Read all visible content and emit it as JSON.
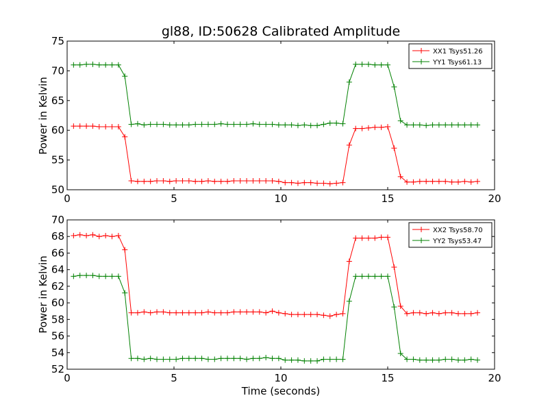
{
  "chart_data": [
    {
      "type": "line",
      "title": "gl88, ID:50628 Calibrated Amplitude",
      "xlabel": "",
      "ylabel": "Power in Kelvin",
      "xlim": [
        0,
        20
      ],
      "ylim": [
        50,
        75
      ],
      "xticks": [
        "0",
        "5",
        "10",
        "15",
        "20"
      ],
      "yticks": [
        "50",
        "55",
        "60",
        "65",
        "70",
        "75"
      ],
      "grid": false,
      "legend": "top-right",
      "x": [
        0.3,
        0.6,
        0.9,
        1.2,
        1.5,
        1.8,
        2.1,
        2.4,
        2.7,
        3.0,
        3.3,
        3.6,
        3.9,
        4.2,
        4.5,
        4.8,
        5.1,
        5.4,
        5.7,
        6.0,
        6.3,
        6.6,
        6.9,
        7.2,
        7.5,
        7.8,
        8.1,
        8.4,
        8.7,
        9.0,
        9.3,
        9.6,
        9.9,
        10.2,
        10.5,
        10.8,
        11.1,
        11.4,
        11.7,
        12.0,
        12.3,
        12.6,
        12.9,
        13.2,
        13.5,
        13.8,
        14.1,
        14.4,
        14.7,
        15.0,
        15.3,
        15.6,
        15.9,
        16.2,
        16.5,
        16.8,
        17.1,
        17.4,
        17.7,
        18.0,
        18.3,
        18.6,
        18.9,
        19.2
      ],
      "series": [
        {
          "name": "XX1 Tsys51.26",
          "color": "#ff0000",
          "values": [
            60.7,
            60.7,
            60.7,
            60.7,
            60.6,
            60.6,
            60.6,
            60.6,
            58.9,
            51.5,
            51.4,
            51.4,
            51.4,
            51.5,
            51.5,
            51.4,
            51.5,
            51.5,
            51.5,
            51.4,
            51.4,
            51.5,
            51.4,
            51.4,
            51.4,
            51.5,
            51.5,
            51.5,
            51.5,
            51.5,
            51.5,
            51.5,
            51.4,
            51.2,
            51.2,
            51.1,
            51.2,
            51.2,
            51.1,
            51.1,
            51.0,
            51.1,
            51.2,
            57.5,
            60.3,
            60.3,
            60.4,
            60.5,
            60.5,
            60.6,
            57.0,
            52.2,
            51.3,
            51.3,
            51.4,
            51.4,
            51.4,
            51.4,
            51.4,
            51.3,
            51.3,
            51.4,
            51.3,
            51.4
          ]
        },
        {
          "name": "YY1 Tsys61.13",
          "color": "#008000",
          "values": [
            71.0,
            71.0,
            71.1,
            71.1,
            71.0,
            71.0,
            71.0,
            71.0,
            69.1,
            61.0,
            61.1,
            60.9,
            61.0,
            61.0,
            61.0,
            60.9,
            60.9,
            60.9,
            60.9,
            61.0,
            61.0,
            61.0,
            61.0,
            61.1,
            61.0,
            61.0,
            61.0,
            61.0,
            61.1,
            61.0,
            61.0,
            61.0,
            60.9,
            60.9,
            60.9,
            60.8,
            60.9,
            60.8,
            60.8,
            61.0,
            61.2,
            61.2,
            61.1,
            68.1,
            71.1,
            71.1,
            71.1,
            71.0,
            71.0,
            71.0,
            67.3,
            61.6,
            60.9,
            60.9,
            60.9,
            60.8,
            60.9,
            60.9,
            60.9,
            60.9,
            60.9,
            60.9,
            60.9,
            60.9
          ]
        }
      ]
    },
    {
      "type": "line",
      "title": "",
      "xlabel": "Time (seconds)",
      "ylabel": "Power in Kelvin",
      "xlim": [
        0,
        20
      ],
      "ylim": [
        52,
        70
      ],
      "xticks": [
        "0",
        "5",
        "10",
        "15",
        "20"
      ],
      "yticks": [
        "52",
        "54",
        "56",
        "58",
        "60",
        "62",
        "64",
        "66",
        "68",
        "70"
      ],
      "grid": false,
      "legend": "top-right",
      "x": [
        0.3,
        0.6,
        0.9,
        1.2,
        1.5,
        1.8,
        2.1,
        2.4,
        2.7,
        3.0,
        3.3,
        3.6,
        3.9,
        4.2,
        4.5,
        4.8,
        5.1,
        5.4,
        5.7,
        6.0,
        6.3,
        6.6,
        6.9,
        7.2,
        7.5,
        7.8,
        8.1,
        8.4,
        8.7,
        9.0,
        9.3,
        9.6,
        9.9,
        10.2,
        10.5,
        10.8,
        11.1,
        11.4,
        11.7,
        12.0,
        12.3,
        12.6,
        12.9,
        13.2,
        13.5,
        13.8,
        14.1,
        14.4,
        14.7,
        15.0,
        15.3,
        15.6,
        15.9,
        16.2,
        16.5,
        16.8,
        17.1,
        17.4,
        17.7,
        18.0,
        18.3,
        18.6,
        18.9,
        19.2
      ],
      "series": [
        {
          "name": "XX2 Tsys58.70",
          "color": "#ff0000",
          "values": [
            68.1,
            68.2,
            68.1,
            68.2,
            68.0,
            68.1,
            68.0,
            68.1,
            66.4,
            58.8,
            58.8,
            58.9,
            58.8,
            58.9,
            58.9,
            58.8,
            58.8,
            58.8,
            58.8,
            58.8,
            58.8,
            58.9,
            58.8,
            58.8,
            58.8,
            58.9,
            58.9,
            58.9,
            58.9,
            58.9,
            58.8,
            59.0,
            58.8,
            58.7,
            58.6,
            58.6,
            58.6,
            58.6,
            58.6,
            58.5,
            58.4,
            58.6,
            58.7,
            65.0,
            67.8,
            67.8,
            67.8,
            67.8,
            67.9,
            67.9,
            64.3,
            59.6,
            58.7,
            58.8,
            58.8,
            58.7,
            58.8,
            58.7,
            58.8,
            58.8,
            58.7,
            58.7,
            58.7,
            58.8
          ]
        },
        {
          "name": "YY2 Tsys53.47",
          "color": "#008000",
          "values": [
            63.2,
            63.3,
            63.3,
            63.3,
            63.2,
            63.2,
            63.2,
            63.2,
            61.2,
            53.3,
            53.3,
            53.2,
            53.3,
            53.2,
            53.2,
            53.2,
            53.2,
            53.3,
            53.3,
            53.3,
            53.3,
            53.2,
            53.2,
            53.3,
            53.3,
            53.3,
            53.3,
            53.2,
            53.3,
            53.3,
            53.4,
            53.3,
            53.3,
            53.1,
            53.1,
            53.1,
            53.0,
            53.0,
            53.0,
            53.2,
            53.2,
            53.2,
            53.2,
            60.2,
            63.2,
            63.2,
            63.2,
            63.2,
            63.2,
            63.2,
            59.5,
            53.9,
            53.2,
            53.2,
            53.1,
            53.1,
            53.1,
            53.1,
            53.2,
            53.2,
            53.1,
            53.1,
            53.2,
            53.1
          ]
        }
      ]
    }
  ]
}
